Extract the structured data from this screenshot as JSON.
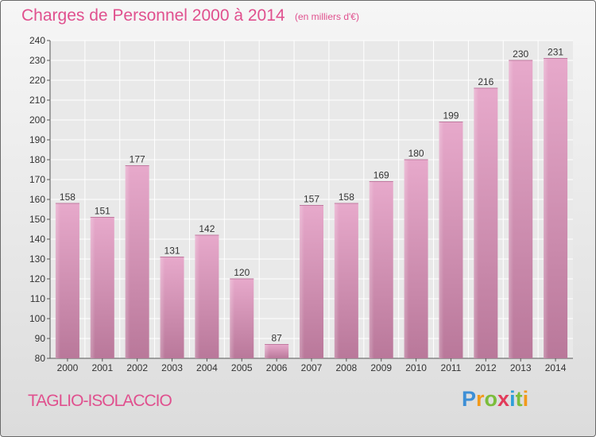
{
  "header": {
    "title": "Charges de Personnel 2000 à 2014",
    "subtitle": "(en milliers d'€)"
  },
  "footer": {
    "commune": "TAGLIO-ISOLACCIO",
    "logo": "Proxiti"
  },
  "colors": {
    "accent": "#e0508e",
    "bar_light": "#e7a9cb",
    "bar_dark": "#b9789a"
  },
  "chart_data": {
    "type": "bar",
    "title": "Charges de Personnel 2000 à 2014",
    "subtitle": "(en milliers d'€)",
    "xlabel": "",
    "ylabel": "",
    "categories": [
      "2000",
      "2001",
      "2002",
      "2003",
      "2004",
      "2005",
      "2006",
      "2007",
      "2008",
      "2009",
      "2010",
      "2011",
      "2012",
      "2013",
      "2014"
    ],
    "values": [
      158,
      151,
      177,
      131,
      142,
      120,
      87,
      157,
      158,
      169,
      180,
      199,
      216,
      230,
      231
    ],
    "ylim": [
      80,
      240
    ],
    "yticks": [
      80,
      90,
      100,
      110,
      120,
      130,
      140,
      150,
      160,
      170,
      180,
      190,
      200,
      210,
      220,
      230,
      240
    ],
    "grid": true,
    "data_labels": true
  }
}
